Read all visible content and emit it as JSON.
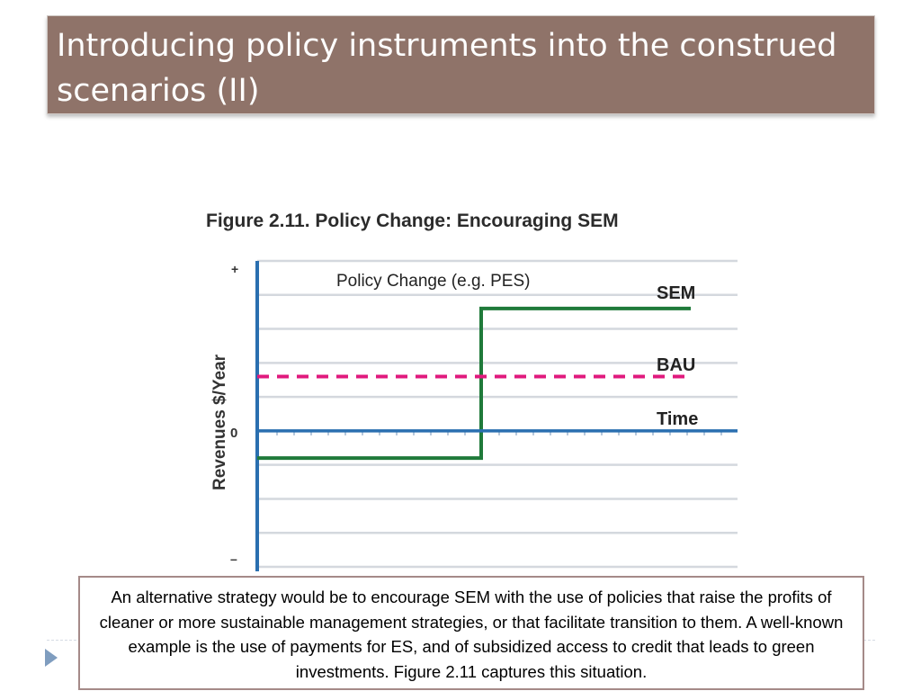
{
  "slide": {
    "title": "Introducing policy instruments into the construed scenarios (II)"
  },
  "figure": {
    "title": "Figure 2.11. Policy Change: Encouraging SEM"
  },
  "chart_data": {
    "type": "line",
    "ylabel": "Revenues $/Year",
    "y_tick_labels": [
      "+",
      "0",
      "–"
    ],
    "annotation": "Policy Change (e.g. PES)",
    "series": [
      {
        "name": "SEM",
        "style": "solid",
        "color": "#1f7a3a",
        "points": [
          [
            "start",
            -0.4
          ],
          [
            "policy change",
            -0.4
          ],
          [
            "policy change",
            1.8
          ],
          [
            "end",
            1.8
          ]
        ]
      },
      {
        "name": "BAU",
        "style": "dashed",
        "color": "#e0197d",
        "points": [
          [
            "start",
            0.8
          ],
          [
            "end",
            0.8
          ]
        ]
      },
      {
        "name": "Time",
        "style": "axis",
        "color": "#2a6fb0",
        "points": [
          [
            "start",
            0
          ],
          [
            "end",
            0
          ]
        ]
      }
    ],
    "ylim": [
      -2,
      2.5
    ],
    "grid": true
  },
  "caption": {
    "text": "An alternative strategy would be to encourage SEM with the use of policies that raise the profits of cleaner or more sustainable management strategies, or that facilitate transition to them.  A well-known example  is the use of payments for ES, and of subsidized access to credit that leads to green investments.  Figure 2.11 captures this situation."
  },
  "colors": {
    "title_banner": "#8f7369",
    "caption_border": "#a58a88",
    "axis_blue": "#2a6fb0",
    "sem_green": "#1f7a3a",
    "bau_magenta": "#e0197d"
  }
}
